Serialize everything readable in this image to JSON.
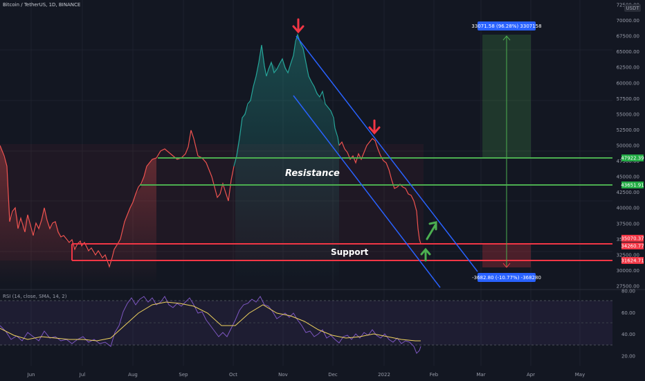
{
  "header": {
    "title": "Bitcoin / TetherUS, 1D, BINANCE",
    "currency": "USDT"
  },
  "rsi": {
    "title": "RSI (14, close, SMA, 14, 2)",
    "ticks": [
      "80.00",
      "60.00",
      "40.00",
      "20.00"
    ]
  },
  "price_axis": {
    "ticks": [
      "72500.00",
      "70000.00",
      "67500.00",
      "65000.00",
      "62500.00",
      "60000.00",
      "57500.00",
      "55000.00",
      "52500.00",
      "50000.00",
      "47500.00",
      "45000.00",
      "42500.00",
      "40000.00",
      "37500.00",
      "35000.00",
      "32500.00",
      "30000.00",
      "27500.00"
    ]
  },
  "time_axis": {
    "labels": [
      "Jun",
      "Jul",
      "Aug",
      "Sep",
      "Oct",
      "Nov",
      "Dec",
      "2022",
      "Feb",
      "Mar",
      "Apr",
      "May"
    ]
  },
  "annotations": {
    "resistance": "Resistance",
    "support": "Support",
    "measure_up": "33071.58 (96.28%) 3307158",
    "measure_down": "-3682.80 (-10.77%) -368280"
  },
  "price_tags": [
    {
      "label": "47922.39",
      "color": "#22ab44"
    },
    {
      "label": "43651.91",
      "color": "#22ab44"
    },
    {
      "label": "35070.37",
      "color": "#f23645"
    },
    {
      "label": "34260.77",
      "color": "#f23645"
    },
    {
      "label": "31624.71",
      "color": "#f23645"
    }
  ],
  "colors": {
    "background": "#131722",
    "resistance_line": "#4caf50",
    "support_line": "#f23645",
    "channel": "#2962ff",
    "arrow_down": "#f23645",
    "arrow_up": "#4caf50",
    "price_line_up": "#26a69a",
    "price_line_down": "#ef5350",
    "rsi_line": "#7e57c2",
    "rsi_ma": "#f0d35e",
    "measure_tag": "#2962ff"
  }
}
